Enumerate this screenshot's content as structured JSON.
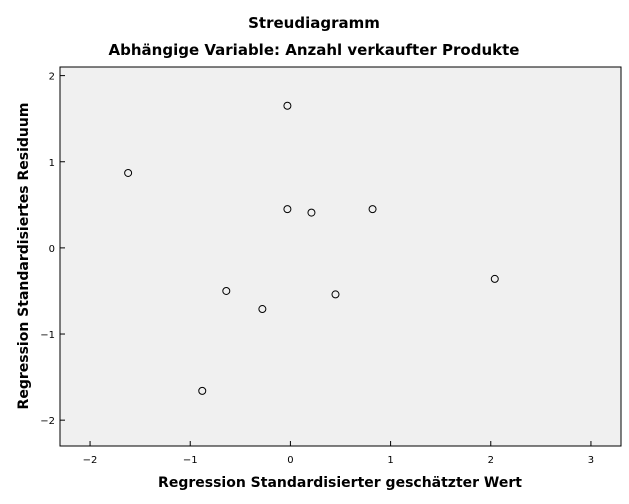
{
  "chart_data": {
    "type": "scatter",
    "title": "Streudiagramm",
    "subtitle": "Abhängige Variable: Anzahl verkaufter Produkte",
    "xlabel": "Regression Standardisierter geschätzter Wert",
    "ylabel": "Regression Standardisiertes Residuum",
    "xlim": [
      -2.3,
      3.3
    ],
    "ylim": [
      -2.3,
      2.1
    ],
    "xticks": [
      -2,
      -1,
      0,
      1,
      2,
      3
    ],
    "yticks": [
      -2,
      -1,
      0,
      1,
      2
    ],
    "xtick_labels": [
      "−2",
      "−1",
      "0",
      "1",
      "2",
      "3"
    ],
    "ytick_labels": [
      "−2",
      "−1",
      "0",
      "1",
      "2"
    ],
    "grid": false,
    "background": "#f0f0f0",
    "marker_color": "#000000",
    "points": [
      {
        "x": -1.62,
        "y": 0.87
      },
      {
        "x": -0.03,
        "y": 1.65
      },
      {
        "x": -0.03,
        "y": 0.45
      },
      {
        "x": 0.21,
        "y": 0.41
      },
      {
        "x": 0.82,
        "y": 0.45
      },
      {
        "x": -0.64,
        "y": -0.5
      },
      {
        "x": -0.28,
        "y": -0.71
      },
      {
        "x": 0.45,
        "y": -0.54
      },
      {
        "x": 2.04,
        "y": -0.36
      },
      {
        "x": -0.88,
        "y": -1.66
      }
    ]
  }
}
